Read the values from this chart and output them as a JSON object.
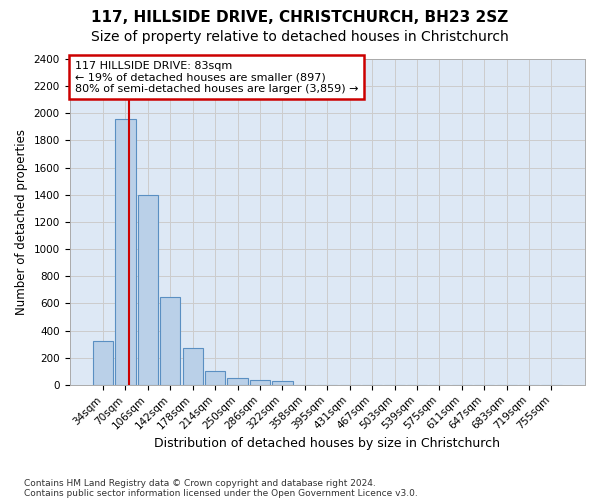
{
  "title1": "117, HILLSIDE DRIVE, CHRISTCHURCH, BH23 2SZ",
  "title2": "Size of property relative to detached houses in Christchurch",
  "xlabel": "Distribution of detached houses by size in Christchurch",
  "ylabel": "Number of detached properties",
  "footnote1": "Contains HM Land Registry data © Crown copyright and database right 2024.",
  "footnote2": "Contains public sector information licensed under the Open Government Licence v3.0.",
  "bar_labels": [
    "34sqm",
    "70sqm",
    "106sqm",
    "142sqm",
    "178sqm",
    "214sqm",
    "250sqm",
    "286sqm",
    "322sqm",
    "358sqm",
    "395sqm",
    "431sqm",
    "467sqm",
    "503sqm",
    "539sqm",
    "575sqm",
    "611sqm",
    "647sqm",
    "683sqm",
    "719sqm",
    "755sqm"
  ],
  "bar_values": [
    325,
    1960,
    1400,
    645,
    270,
    100,
    48,
    38,
    30,
    0,
    0,
    0,
    0,
    0,
    0,
    0,
    0,
    0,
    0,
    0,
    0
  ],
  "bar_color": "#bad0e8",
  "bar_edge_color": "#5a8fc2",
  "annotation_line1": "117 HILLSIDE DRIVE: 83sqm",
  "annotation_line2": "← 19% of detached houses are smaller (897)",
  "annotation_line3": "80% of semi-detached houses are larger (3,859) →",
  "redline_x": 1.15,
  "annotation_box_color": "#ffffff",
  "annotation_box_edge": "#cc0000",
  "ylim": [
    0,
    2400
  ],
  "yticks": [
    0,
    200,
    400,
    600,
    800,
    1000,
    1200,
    1400,
    1600,
    1800,
    2000,
    2200,
    2400
  ],
  "grid_color": "#cccccc",
  "bg_color": "#dde8f5",
  "title1_fontsize": 11,
  "title2_fontsize": 10,
  "xlabel_fontsize": 9,
  "ylabel_fontsize": 8.5,
  "tick_fontsize": 7.5,
  "annotation_fontsize": 8
}
